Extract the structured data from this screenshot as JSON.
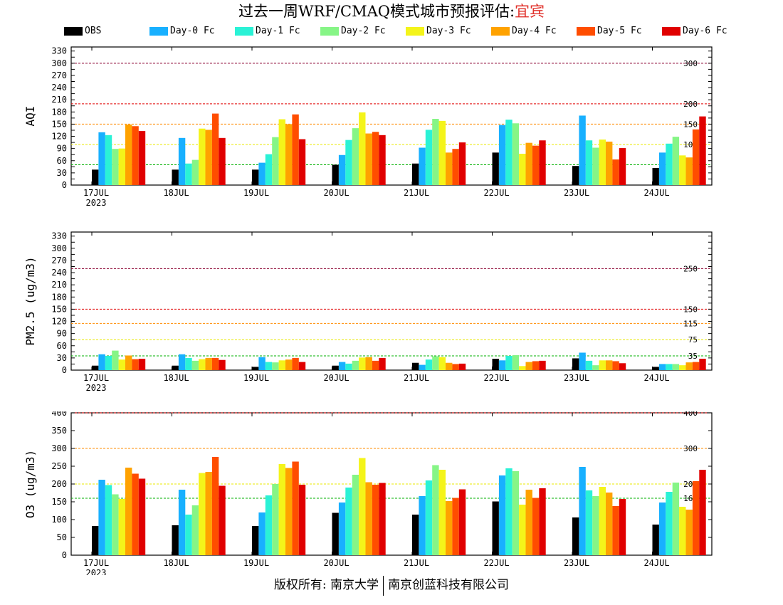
{
  "header": {
    "title": "过去一周WRF/CMAQ模式城市预报评估:",
    "city": "宜宾"
  },
  "footer": {
    "left": "版权所有: 南京大学",
    "right": "南京创蓝科技有限公司"
  },
  "colors": {
    "series": [
      "#000000",
      "#18b0ff",
      "#2af2d6",
      "#86f586",
      "#f4f41a",
      "#ffa200",
      "#ff4d00",
      "#e00000"
    ],
    "frame": "#000000"
  },
  "chart_data": [
    {
      "type": "bar",
      "id": "aqi",
      "ylabel": "AQI",
      "ylim": [
        0,
        340
      ],
      "yticks": [
        0,
        15,
        30,
        45,
        60,
        75,
        90,
        105,
        120,
        135,
        150,
        165,
        180,
        195,
        210,
        225,
        240,
        255,
        270,
        285,
        300,
        315,
        330
      ],
      "ytick_labels": [
        "0",
        "",
        "30",
        "",
        "60",
        "",
        "90",
        "",
        "120",
        "",
        "150",
        "",
        "180",
        "",
        "210",
        "",
        "240",
        "",
        "270",
        "",
        "300",
        "",
        "330"
      ],
      "categories": [
        "17JUL",
        "18JUL",
        "19JUL",
        "20JUL",
        "21JUL",
        "22JUL",
        "23JUL",
        "24JUL"
      ],
      "year_label": "2023",
      "thresholds": [
        {
          "value": 50,
          "label": "50",
          "color": "#00b000"
        },
        {
          "value": 100,
          "label": "100",
          "color": "#e8e800"
        },
        {
          "value": 150,
          "label": "150",
          "color": "#ff8c00"
        },
        {
          "value": 200,
          "label": "200",
          "color": "#e00000"
        },
        {
          "value": 300,
          "label": "300",
          "color": "#8b0030"
        }
      ],
      "series": [
        {
          "name": "OBS",
          "values": [
            38,
            38,
            38,
            50,
            53,
            80,
            47,
            42
          ]
        },
        {
          "name": "Day-0 Fc",
          "values": [
            130,
            116,
            55,
            74,
            92,
            148,
            171,
            80
          ]
        },
        {
          "name": "Day-1 Fc",
          "values": [
            123,
            53,
            76,
            111,
            136,
            161,
            110,
            102
          ]
        },
        {
          "name": "Day-2 Fc",
          "values": [
            89,
            62,
            118,
            140,
            163,
            152,
            92,
            119
          ]
        },
        {
          "name": "Day-3 Fc",
          "values": [
            90,
            139,
            162,
            179,
            158,
            77,
            112,
            73
          ]
        },
        {
          "name": "Day-4 Fc",
          "values": [
            149,
            136,
            150,
            127,
            80,
            104,
            107,
            68
          ]
        },
        {
          "name": "Day-5 Fc",
          "values": [
            145,
            176,
            174,
            131,
            89,
            97,
            63,
            137
          ]
        },
        {
          "name": "Day-6 Fc",
          "values": [
            133,
            116,
            113,
            123,
            105,
            110,
            91,
            169
          ]
        }
      ]
    },
    {
      "type": "bar",
      "id": "pm25",
      "ylabel": "PM2.5 (ug/m3)",
      "ylim": [
        0,
        340
      ],
      "yticks": [
        0,
        15,
        30,
        45,
        60,
        75,
        90,
        105,
        120,
        135,
        150,
        165,
        180,
        195,
        210,
        225,
        240,
        255,
        270,
        285,
        300,
        315,
        330
      ],
      "ytick_labels": [
        "0",
        "",
        "30",
        "",
        "60",
        "",
        "90",
        "",
        "120",
        "",
        "150",
        "",
        "180",
        "",
        "210",
        "",
        "240",
        "",
        "270",
        "",
        "300",
        "",
        "330"
      ],
      "categories": [
        "17JUL",
        "18JUL",
        "19JUL",
        "20JUL",
        "21JUL",
        "22JUL",
        "23JUL",
        "24JUL"
      ],
      "year_label": "2023",
      "thresholds": [
        {
          "value": 35,
          "label": "35",
          "color": "#00b000"
        },
        {
          "value": 75,
          "label": "75",
          "color": "#e8e800"
        },
        {
          "value": 115,
          "label": "115",
          "color": "#ff8c00"
        },
        {
          "value": 150,
          "label": "150",
          "color": "#e00000"
        },
        {
          "value": 250,
          "label": "250",
          "color": "#8b0030"
        }
      ],
      "series": [
        {
          "name": "OBS",
          "values": [
            11,
            11,
            8,
            11,
            18,
            28,
            29,
            8
          ]
        },
        {
          "name": "Day-0 Fc",
          "values": [
            39,
            39,
            32,
            20,
            13,
            24,
            43,
            15
          ]
        },
        {
          "name": "Day-1 Fc",
          "values": [
            35,
            30,
            20,
            16,
            26,
            35,
            23,
            15
          ]
        },
        {
          "name": "Day-2 Fc",
          "values": [
            48,
            23,
            19,
            23,
            34,
            37,
            12,
            15
          ]
        },
        {
          "name": "Day-3 Fc",
          "values": [
            26,
            27,
            24,
            31,
            32,
            10,
            24,
            12
          ]
        },
        {
          "name": "Day-4 Fc",
          "values": [
            36,
            30,
            26,
            32,
            18,
            20,
            24,
            19
          ]
        },
        {
          "name": "Day-5 Fc",
          "values": [
            27,
            30,
            30,
            23,
            15,
            22,
            22,
            20
          ]
        },
        {
          "name": "Day-6 Fc",
          "values": [
            28,
            25,
            20,
            30,
            16,
            23,
            17,
            28
          ]
        }
      ]
    },
    {
      "type": "bar",
      "id": "o3",
      "ylabel": "O3 (ug/m3)",
      "ylim": [
        0,
        400
      ],
      "yticks": [
        0,
        50,
        100,
        150,
        200,
        250,
        300,
        350,
        400
      ],
      "ytick_labels": [
        "0",
        "50",
        "100",
        "150",
        "200",
        "250",
        "300",
        "350",
        "400"
      ],
      "categories": [
        "17JUL",
        "18JUL",
        "19JUL",
        "20JUL",
        "21JUL",
        "22JUL",
        "23JUL",
        "24JUL"
      ],
      "year_label": "2023",
      "thresholds": [
        {
          "value": 160,
          "label": "160",
          "color": "#00b000"
        },
        {
          "value": 200,
          "label": "200",
          "color": "#e8e800"
        },
        {
          "value": 300,
          "label": "300",
          "color": "#ff8c00"
        },
        {
          "value": 400,
          "label": "400",
          "color": "#e00000"
        }
      ],
      "series": [
        {
          "name": "OBS",
          "values": [
            82,
            84,
            82,
            119,
            114,
            151,
            106,
            86
          ]
        },
        {
          "name": "Day-0 Fc",
          "values": [
            212,
            184,
            120,
            148,
            166,
            224,
            248,
            148
          ]
        },
        {
          "name": "Day-1 Fc",
          "values": [
            197,
            114,
            168,
            190,
            210,
            244,
            182,
            178
          ]
        },
        {
          "name": "Day-2 Fc",
          "values": [
            171,
            140,
            200,
            226,
            253,
            236,
            166,
            204
          ]
        },
        {
          "name": "Day-3 Fc",
          "values": [
            158,
            231,
            256,
            273,
            240,
            142,
            192,
            136
          ]
        },
        {
          "name": "Day-4 Fc",
          "values": [
            246,
            234,
            245,
            205,
            152,
            184,
            176,
            128
          ]
        },
        {
          "name": "Day-5 Fc",
          "values": [
            229,
            276,
            263,
            198,
            161,
            161,
            138,
            208
          ]
        },
        {
          "name": "Day-6 Fc",
          "values": [
            215,
            195,
            198,
            203,
            185,
            188,
            158,
            240
          ]
        }
      ]
    }
  ]
}
